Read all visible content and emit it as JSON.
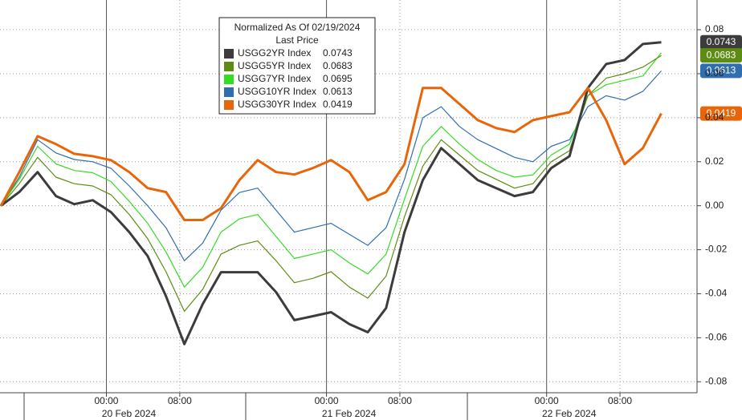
{
  "chart_data": {
    "type": "line",
    "legend_title": "Normalized As Of 02/19/2024",
    "legend_subtitle": "Last Price",
    "x": [
      -11.5,
      -9.5,
      -7.5,
      -5.5,
      -3.5,
      -1.5,
      0.5,
      2.5,
      4.5,
      6.5,
      8.5,
      10.5,
      12.5,
      14.5,
      16.5,
      18.5,
      20.5,
      22.5,
      24.5,
      26.5,
      28.5,
      30.5,
      32.5,
      34.5,
      36.5,
      38.5,
      40.5,
      42.5,
      44.5,
      46.5,
      48.5,
      50.5,
      52.5,
      54.5,
      56.5,
      58.5,
      60.5
    ],
    "xlim": [
      -11.6,
      64.4
    ],
    "xticks": [
      {
        "value": 0,
        "label": "00:00"
      },
      {
        "value": 8,
        "label": "08:00"
      },
      {
        "value": 24,
        "label": "00:00"
      },
      {
        "value": 32,
        "label": "08:00"
      },
      {
        "value": 48,
        "label": "00:00"
      },
      {
        "value": 56,
        "label": "08:00"
      }
    ],
    "date_labels": [
      "20 Feb 2024",
      "21 Feb 2024",
      "22 Feb 2024"
    ],
    "ylim": [
      -0.085,
      0.0935
    ],
    "yticks": [
      -0.08,
      -0.06,
      -0.04,
      -0.02,
      {
        "value": 0,
        "label": "0.00"
      },
      0.02,
      0.04,
      0.06,
      0.08
    ],
    "grid": true,
    "series": [
      {
        "name": "USGG2YR Index",
        "color": "#3c3c3c",
        "last_price": 0.0743,
        "values": [
          0,
          0.0062,
          0.0153,
          0.0044,
          0.0007,
          0.0025,
          -0.0029,
          -0.012,
          -0.0229,
          -0.0411,
          -0.0629,
          -0.0447,
          -0.0302,
          -0.0302,
          -0.0302,
          -0.0393,
          -0.052,
          -0.0502,
          -0.0484,
          -0.0538,
          -0.0575,
          -0.0465,
          -0.012,
          0.0116,
          0.0262,
          0.0189,
          0.0116,
          0.008,
          0.0044,
          0.0062,
          0.0171,
          0.0225,
          0.0535,
          0.0644,
          0.0662,
          0.0735,
          0.0743
        ]
      },
      {
        "name": "USGG5YR Index",
        "color": "#5e8c12",
        "last_price": 0.0683,
        "values": [
          0,
          0.01,
          0.022,
          0.013,
          0.01,
          0.009,
          0.005,
          -0.004,
          -0.015,
          -0.03,
          -0.048,
          -0.038,
          -0.022,
          -0.018,
          -0.016,
          -0.025,
          -0.035,
          -0.033,
          -0.03,
          -0.037,
          -0.042,
          -0.032,
          -0.005,
          0.018,
          0.03,
          0.023,
          0.016,
          0.012,
          0.008,
          0.01,
          0.02,
          0.025,
          0.05,
          0.058,
          0.06,
          0.063,
          0.0683
        ]
      },
      {
        "name": "USGG7YR Index",
        "color": "#33dd22",
        "last_price": 0.0695,
        "values": [
          0,
          0.012,
          0.027,
          0.019,
          0.016,
          0.015,
          0.011,
          0.002,
          -0.008,
          -0.021,
          -0.037,
          -0.028,
          -0.012,
          -0.006,
          -0.004,
          -0.014,
          -0.024,
          -0.022,
          -0.02,
          -0.026,
          -0.031,
          -0.022,
          0.003,
          0.027,
          0.036,
          0.028,
          0.021,
          0.016,
          0.013,
          0.014,
          0.023,
          0.028,
          0.05,
          0.055,
          0.057,
          0.059,
          0.0695
        ]
      },
      {
        "name": "USGG10YR Index",
        "color": "#2f6fb0",
        "last_price": 0.0613,
        "values": [
          0,
          0.013,
          0.03,
          0.024,
          0.021,
          0.02,
          0.017,
          0.009,
          0,
          -0.01,
          -0.025,
          -0.017,
          -0.002,
          0.006,
          0.008,
          -0.002,
          -0.012,
          -0.01,
          -0.008,
          -0.013,
          -0.018,
          -0.01,
          0.012,
          0.04,
          0.045,
          0.036,
          0.03,
          0.026,
          0.022,
          0.02,
          0.027,
          0.03,
          0.045,
          0.05,
          0.048,
          0.052,
          0.0613
        ]
      },
      {
        "name": "USGG30YR Index",
        "color": "#e8650a",
        "last_price": 0.0419,
        "values": [
          0,
          0.0153,
          0.0316,
          0.028,
          0.0236,
          0.0225,
          0.0207,
          0.0153,
          0.008,
          0.0062,
          -0.0065,
          -0.0065,
          -0.0011,
          0.0116,
          0.0207,
          0.0153,
          0.0142,
          0.0171,
          0.0207,
          0.0153,
          0.0025,
          0.0062,
          0.0189,
          0.0535,
          0.0535,
          0.0462,
          0.0389,
          0.0353,
          0.0335,
          0.0389,
          0.0407,
          0.0425,
          0.0535,
          0.0389,
          0.0189,
          0.0262,
          0.0419
        ]
      }
    ]
  }
}
